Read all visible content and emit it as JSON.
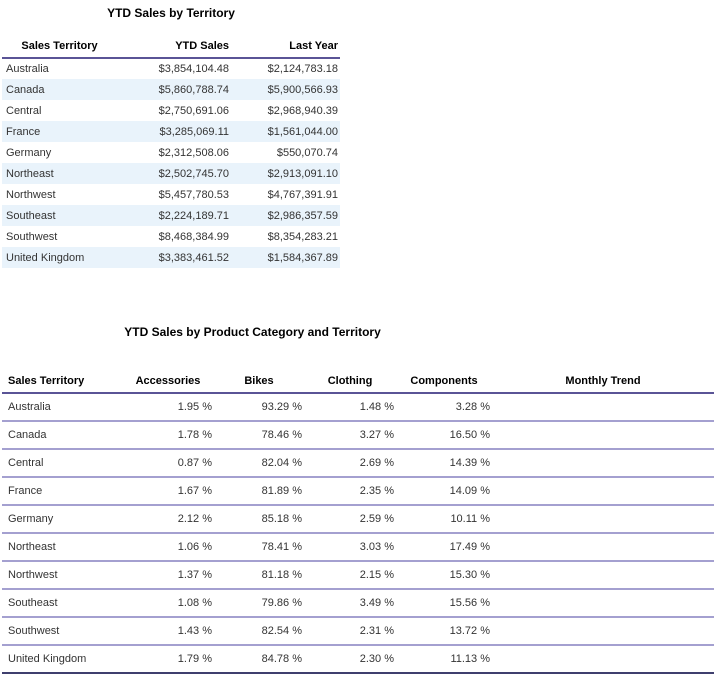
{
  "colors": {
    "header_rule": "#5A5496",
    "row_rule": "#A4A0D0",
    "bottom_rule": "#3F3F6E",
    "alt_row_bg": "#E9F3FB",
    "text": "#333333",
    "heading": "#000000"
  },
  "sales_by_territory": {
    "title": "YTD Sales by Territory",
    "columns": [
      "Sales Territory",
      "YTD Sales",
      "Last Year"
    ],
    "rows": [
      [
        "Australia",
        "$3,854,104.48",
        "$2,124,783.18"
      ],
      [
        "Canada",
        "$5,860,788.74",
        "$5,900,566.93"
      ],
      [
        "Central",
        "$2,750,691.06",
        "$2,968,940.39"
      ],
      [
        "France",
        "$3,285,069.11",
        "$1,561,044.00"
      ],
      [
        "Germany",
        "$2,312,508.06",
        "$550,070.74"
      ],
      [
        "Northeast",
        "$2,502,745.70",
        "$2,913,091.10"
      ],
      [
        "Northwest",
        "$5,457,780.53",
        "$4,767,391.91"
      ],
      [
        "Southeast",
        "$2,224,189.71",
        "$2,986,357.59"
      ],
      [
        "Southwest",
        "$8,468,384.99",
        "$8,354,283.21"
      ],
      [
        "United Kingdom",
        "$3,383,461.52",
        "$1,584,367.89"
      ]
    ]
  },
  "sales_by_category": {
    "title": "YTD Sales by Product Category and Territory",
    "columns": [
      "Sales Territory",
      "Accessories",
      "Bikes",
      "Clothing",
      "Components",
      "Monthly Trend"
    ],
    "rows": [
      [
        "Australia",
        "1.95 %",
        "93.29 %",
        "1.48 %",
        "3.28 %",
        ""
      ],
      [
        "Canada",
        "1.78 %",
        "78.46 %",
        "3.27 %",
        "16.50 %",
        ""
      ],
      [
        "Central",
        "0.87 %",
        "82.04 %",
        "2.69 %",
        "14.39 %",
        ""
      ],
      [
        "France",
        "1.67 %",
        "81.89 %",
        "2.35 %",
        "14.09 %",
        ""
      ],
      [
        "Germany",
        "2.12 %",
        "85.18 %",
        "2.59 %",
        "10.11 %",
        ""
      ],
      [
        "Northeast",
        "1.06 %",
        "78.41 %",
        "3.03 %",
        "17.49 %",
        ""
      ],
      [
        "Northwest",
        "1.37 %",
        "81.18 %",
        "2.15 %",
        "15.30 %",
        ""
      ],
      [
        "Southeast",
        "1.08 %",
        "79.86 %",
        "3.49 %",
        "15.56 %",
        ""
      ],
      [
        "Southwest",
        "1.43 %",
        "82.54 %",
        "2.31 %",
        "13.72 %",
        ""
      ],
      [
        "United Kingdom",
        "1.79 %",
        "84.78 %",
        "2.30 %",
        "11.13 %",
        ""
      ]
    ]
  }
}
